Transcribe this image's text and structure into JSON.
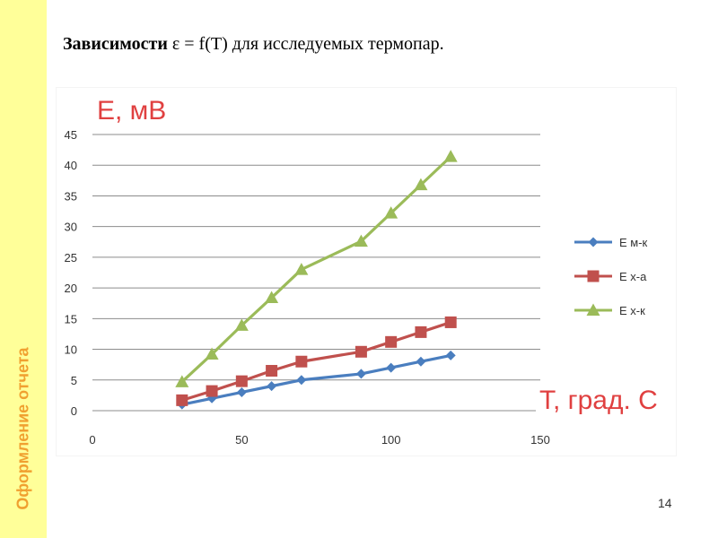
{
  "slide": {
    "title_bold": "Зависимости",
    "title_rest": " ε = f(T) для исследуемых термопар.",
    "side_label": "Оформление отчета",
    "page_number": "14"
  },
  "chart_data": {
    "type": "line",
    "ylabel": "E, мВ",
    "xlabel": "Т, град. С",
    "xlim": [
      0,
      150
    ],
    "ylim": [
      0,
      45
    ],
    "xticks": [
      0,
      50,
      100,
      150
    ],
    "yticks": [
      0,
      5,
      10,
      15,
      20,
      25,
      30,
      35,
      40,
      45
    ],
    "grid": true,
    "legend_position": "right",
    "series": [
      {
        "name": "E м-к",
        "color": "#4a7ebf",
        "marker": "diamond",
        "points": [
          [
            30,
            1
          ],
          [
            40,
            2
          ],
          [
            50,
            3
          ],
          [
            60,
            4
          ],
          [
            70,
            5
          ],
          [
            90,
            6
          ],
          [
            100,
            7
          ],
          [
            110,
            8
          ],
          [
            120,
            9
          ]
        ]
      },
      {
        "name": "E х-а",
        "color": "#c0504d",
        "marker": "square",
        "points": [
          [
            30,
            1.7
          ],
          [
            40,
            3.2
          ],
          [
            50,
            4.8
          ],
          [
            60,
            6.5
          ],
          [
            70,
            8
          ],
          [
            90,
            9.6
          ],
          [
            100,
            11.2
          ],
          [
            110,
            12.8
          ],
          [
            120,
            14.4
          ]
        ]
      },
      {
        "name": "E х-к",
        "color": "#9bbb59",
        "marker": "triangle",
        "points": [
          [
            30,
            4.7
          ],
          [
            40,
            9.2
          ],
          [
            50,
            13.9
          ],
          [
            60,
            18.4
          ],
          [
            70,
            23
          ],
          [
            90,
            27.6
          ],
          [
            100,
            32.2
          ],
          [
            110,
            36.8
          ],
          [
            120,
            41.4
          ]
        ]
      }
    ]
  }
}
